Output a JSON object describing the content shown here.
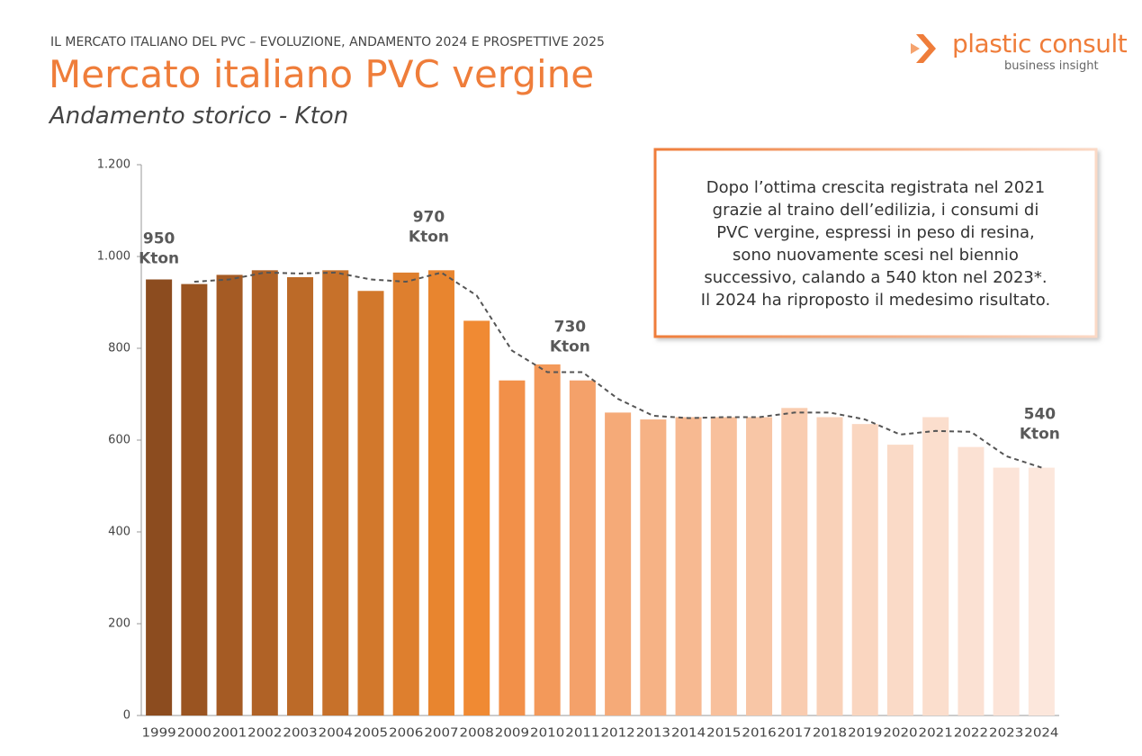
{
  "header": "IL MERCATO ITALIANO DEL PVC – EVOLUZIONE, ANDAMENTO 2024 E PROSPETTIVE 2025",
  "logo": {
    "name": "plastic consult",
    "tagline": "business insight"
  },
  "chart_data": {
    "type": "bar",
    "title": "Mercato italiano PVC vergine",
    "subtitle": "Andamento storico - Kton",
    "categories": [
      "1999",
      "2000",
      "2001",
      "2002",
      "2003",
      "2004",
      "2005",
      "2006",
      "2007",
      "2008",
      "2009",
      "2010",
      "2011",
      "2012",
      "2013",
      "2014",
      "2015",
      "2016",
      "2017",
      "2018",
      "2019",
      "2020",
      "2021",
      "2022",
      "2023",
      "2024"
    ],
    "series": [
      {
        "values": [
          950,
          940,
          960,
          970,
          955,
          970,
          925,
          965,
          970,
          860,
          730,
          765,
          730,
          660,
          645,
          650,
          650,
          650,
          670,
          650,
          635,
          590,
          650,
          585,
          540,
          540
        ],
        "colors": [
          "#8c4c1f",
          "#9a5421",
          "#a55b24",
          "#b06226",
          "#bc6a28",
          "#c7712a",
          "#d2782c",
          "#de7f2e",
          "#e8852f",
          "#f08a33",
          "#f29049",
          "#f3995a",
          "#f4a16a",
          "#f5aa78",
          "#f6b285",
          "#f7b991",
          "#f8c09c",
          "#f8c6a6",
          "#f9ccb0",
          "#f9d1b8",
          "#fad6c0",
          "#fadac7",
          "#fbdecd",
          "#fbe1d3",
          "#fce4d8",
          "#fce7dc"
        ],
        "value_labels": [
          [
            "950",
            "Kton"
          ],
          null,
          null,
          null,
          null,
          null,
          null,
          null,
          [
            "970",
            "Kton"
          ],
          null,
          null,
          null,
          [
            "730",
            "Kton"
          ],
          null,
          null,
          null,
          null,
          null,
          null,
          null,
          null,
          null,
          null,
          null,
          null,
          [
            "540",
            "Kton"
          ]
        ]
      },
      {
        "type": "line",
        "color": "#555555",
        "values": [
          null,
          945,
          950,
          965,
          963,
          965,
          950,
          945,
          965,
          915,
          795,
          748,
          748,
          690,
          653,
          648,
          650,
          650,
          660,
          660,
          645,
          612,
          620,
          618,
          565,
          540
        ]
      }
    ],
    "ylim": [
      0,
      1200
    ],
    "yticks": [
      0,
      200,
      400,
      600,
      800,
      {
        "value": 1000,
        "label": "1.000"
      },
      {
        "value": 1200,
        "label": "1.200"
      }
    ],
    "note": [
      "Dopo l’ottima crescita registrata nel 2021",
      "grazie al traino dell’edilizia, i consumi di",
      "PVC vergine, espressi in peso di resina,",
      "sono nuovamente scesi nel biennio",
      "successivo, calando a 540 kton nel 2023*.",
      "Il 2024 ha riproposto il medesimo risultato."
    ]
  }
}
